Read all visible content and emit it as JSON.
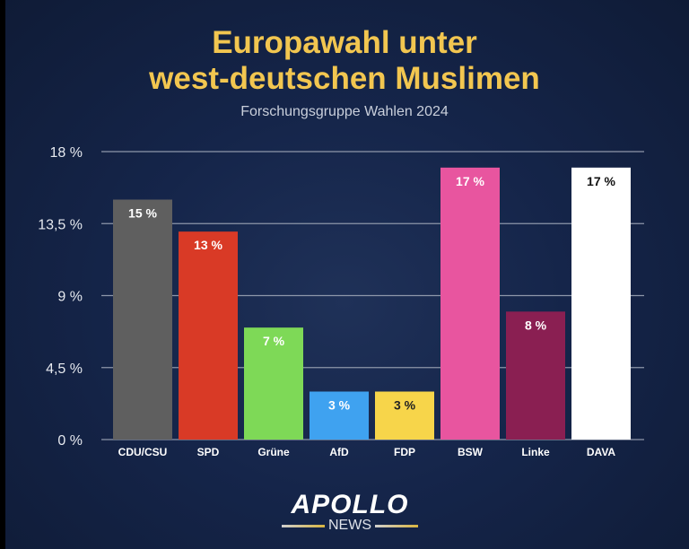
{
  "chart_data": {
    "type": "bar",
    "title_line1": "Europawahl unter",
    "title_line2": "west-deutschen Muslimen",
    "subtitle": "Forschungsgruppe Wahlen 2024",
    "categories": [
      "CDU/CSU",
      "SPD",
      "Grüne",
      "AfD",
      "FDP",
      "BSW",
      "Linke",
      "DAVA"
    ],
    "values": [
      15,
      13,
      7,
      3,
      3,
      17,
      8,
      17
    ],
    "data_labels": [
      "15 %",
      "13 %",
      "7 %",
      "3 %",
      "3 %",
      "17 %",
      "8 %",
      "17 %"
    ],
    "colors": [
      "#5f5f5f",
      "#d93a26",
      "#7ed957",
      "#3fa2f0",
      "#f7d54a",
      "#e8559f",
      "#8a1f52",
      "#ffffff"
    ],
    "label_colors": [
      "#ffffff",
      "#ffffff",
      "#ffffff",
      "#ffffff",
      "#222222",
      "#ffffff",
      "#ffffff",
      "#111111"
    ],
    "yticks": [
      0,
      4.5,
      9,
      13.5,
      18
    ],
    "ytick_labels": [
      "0 %",
      "4,5 %",
      "9 %",
      "13,5 %",
      "18 %"
    ],
    "ylim": [
      0,
      18
    ],
    "grid": true,
    "xlabel": "",
    "ylabel": ""
  },
  "logo": {
    "main": "APOLLO",
    "sub": "NEWS"
  },
  "colors": {
    "title": "#f2c650",
    "background": "#15254a"
  }
}
